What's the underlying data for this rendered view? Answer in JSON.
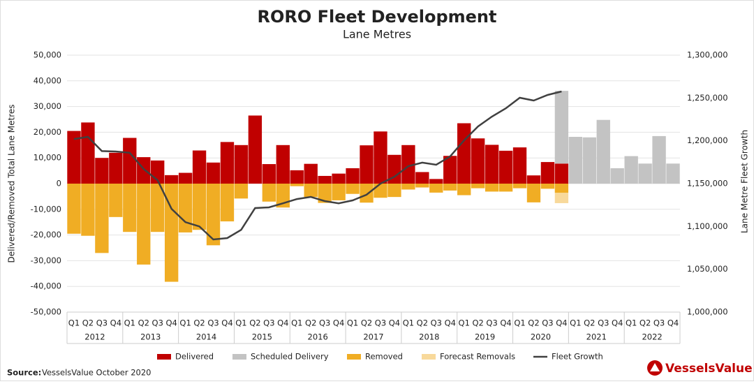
{
  "chart_data": {
    "type": "bar",
    "title": "RORO Fleet Development",
    "subtitle": "Lane Metres",
    "y_label": "Delivered/Removed Total Lane Metres",
    "y2_label": "Lane Metre Fleet Growth",
    "source_label": "Source:",
    "source_text": "VesselsValue October 2020",
    "brand": "VesselsValue",
    "stacked": true,
    "grid": true,
    "legend": "bottom",
    "categories": [
      "Q1",
      "Q2",
      "Q3",
      "Q4",
      "Q1",
      "Q2",
      "Q3",
      "Q4",
      "Q1",
      "Q2",
      "Q3",
      "Q4",
      "Q1",
      "Q2",
      "Q3",
      "Q4",
      "Q1",
      "Q2",
      "Q3",
      "Q4",
      "Q1",
      "Q2",
      "Q3",
      "Q4",
      "Q1",
      "Q2",
      "Q3",
      "Q4",
      "Q1",
      "Q2",
      "Q3",
      "Q4",
      "Q1",
      "Q2",
      "Q3",
      "Q4",
      "Q1",
      "Q2",
      "Q3",
      "Q4",
      "Q1",
      "Q2",
      "Q3",
      "Q4"
    ],
    "year_groups": [
      "2012",
      "2013",
      "2014",
      "2015",
      "2016",
      "2017",
      "2018",
      "2019",
      "2020",
      "2021",
      "2022"
    ],
    "ylim": [
      -50000,
      50000
    ],
    "yticks": [
      {
        "value": -50000,
        "label": "-50,000"
      },
      {
        "value": -40000,
        "label": "-40,000"
      },
      {
        "value": -30000,
        "label": "-30,000"
      },
      {
        "value": -20000,
        "label": "-20,000"
      },
      {
        "value": -10000,
        "label": "-10,000"
      },
      0,
      {
        "value": 10000,
        "label": "10,000"
      },
      {
        "value": 20000,
        "label": "20,000"
      },
      {
        "value": 30000,
        "label": "30,000"
      },
      {
        "value": 40000,
        "label": "40,000"
      },
      {
        "value": 50000,
        "label": "50,000"
      }
    ],
    "y2lim": [
      1000000,
      1300000
    ],
    "y2ticks": [
      {
        "value": 1000000,
        "label": "1,000,000"
      },
      {
        "value": 1050000,
        "label": "1,050,000"
      },
      {
        "value": 1100000,
        "label": "1,100,000"
      },
      {
        "value": 1150000,
        "label": "1,150,000"
      },
      {
        "value": 1200000,
        "label": "1,200,000"
      },
      {
        "value": 1250000,
        "label": "1,250,000"
      },
      {
        "value": 1300000,
        "label": "1,300,000"
      }
    ],
    "series": [
      {
        "name": "Delivered",
        "type": "bar",
        "color": "#c00000",
        "values": [
          20500,
          23800,
          10000,
          12000,
          17800,
          10300,
          9000,
          3300,
          4200,
          12900,
          8200,
          16200,
          15000,
          26500,
          7600,
          15000,
          5200,
          7700,
          3000,
          3900,
          6000,
          14900,
          20300,
          11200,
          15000,
          4500,
          1800,
          10800,
          23500,
          17600,
          15100,
          12800,
          14100,
          3200,
          8400,
          7800,
          null,
          null,
          null,
          null,
          null,
          null,
          null,
          null
        ]
      },
      {
        "name": "Scheduled Delivery",
        "type": "bar",
        "color": "#c3c3c3",
        "values": [
          null,
          null,
          null,
          null,
          null,
          null,
          null,
          null,
          null,
          null,
          null,
          null,
          null,
          null,
          null,
          null,
          null,
          null,
          null,
          null,
          null,
          null,
          null,
          null,
          null,
          null,
          null,
          null,
          null,
          null,
          null,
          null,
          null,
          null,
          null,
          28300,
          18200,
          18000,
          24800,
          6000,
          10700,
          7800,
          18500,
          7800
        ]
      },
      {
        "name": "Removed",
        "type": "bar",
        "color": "#f0ad24",
        "values": [
          -19500,
          -20300,
          -27000,
          -13000,
          -18800,
          -31500,
          -18800,
          -38200,
          -19000,
          -18000,
          -24000,
          -14700,
          -5800,
          null,
          -7000,
          -9300,
          -1000,
          -5200,
          -7500,
          -6500,
          -4000,
          -7400,
          -5500,
          -5200,
          -2300,
          -1500,
          -3500,
          -2700,
          -4500,
          -1800,
          -3100,
          -3100,
          -1800,
          -7300,
          -2000,
          -3600,
          null,
          null,
          null,
          null,
          null,
          null,
          null,
          null
        ]
      },
      {
        "name": "Forecast Removals",
        "type": "bar",
        "color": "#f8d99b",
        "values": [
          null,
          null,
          null,
          null,
          null,
          null,
          null,
          null,
          null,
          null,
          null,
          null,
          null,
          null,
          null,
          null,
          null,
          null,
          null,
          null,
          null,
          null,
          null,
          null,
          null,
          null,
          null,
          null,
          null,
          null,
          null,
          null,
          null,
          null,
          null,
          -4000,
          null,
          null,
          null,
          null,
          null,
          null,
          null,
          null
        ]
      },
      {
        "name": "Fleet Growth",
        "type": "line",
        "axis": "y2",
        "color": "#404040",
        "values": [
          1202000,
          1204600,
          1188000,
          1187500,
          1186000,
          1167000,
          1154000,
          1120600,
          1105000,
          1100000,
          1084800,
          1086400,
          1096000,
          1121500,
          1122300,
          1127000,
          1132000,
          1134500,
          1129600,
          1127000,
          1130400,
          1137000,
          1150000,
          1158000,
          1170400,
          1174500,
          1172000,
          1181800,
          1200500,
          1216800,
          1228300,
          1238000,
          1250300,
          1247000,
          1253500,
          1257600,
          null,
          null,
          null,
          null,
          null,
          null,
          null,
          null
        ]
      }
    ]
  }
}
